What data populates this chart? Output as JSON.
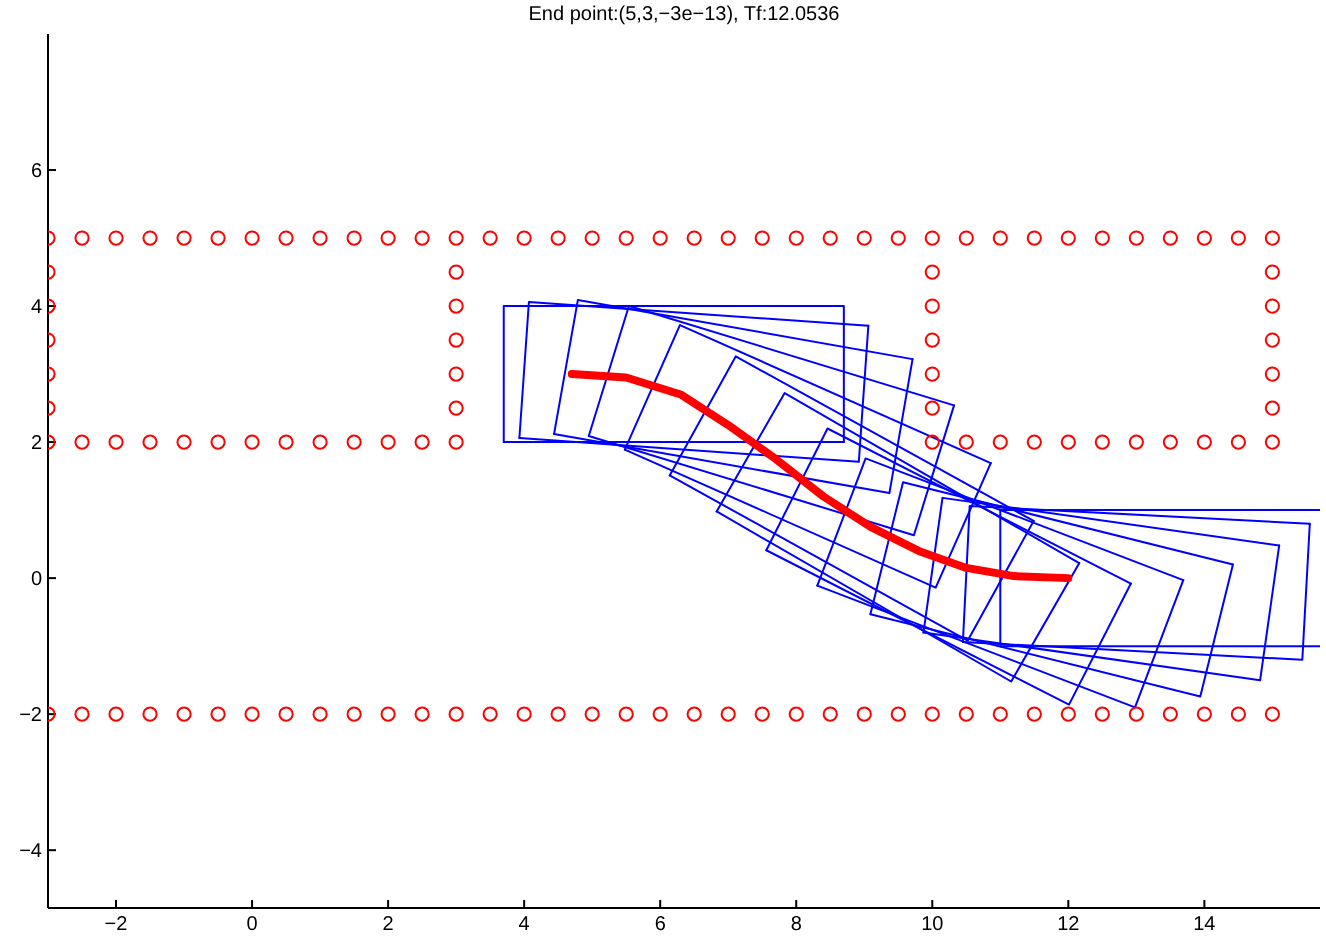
{
  "chart_data": {
    "type": "line",
    "title": "End point:(5,3,−3e−13), Tf:12.0536",
    "xlim": [
      -3,
      15.7
    ],
    "xticks": [
      -2,
      0,
      2,
      4,
      6,
      8,
      10,
      12,
      14
    ],
    "ylim": [
      -4.85,
      8
    ],
    "yticks": [
      -4,
      -2,
      0,
      2,
      4,
      6
    ],
    "grid": false,
    "marker": "none",
    "line_style": "solid",
    "series": [
      {
        "type": "scatter",
        "marker": "circle",
        "color": "#ff0000",
        "x": [
          -3,
          -2.5,
          -2,
          -1.5,
          -1,
          -0.5,
          0,
          0.5,
          1,
          1.5,
          2,
          2.5,
          3,
          3.5,
          4,
          4.5,
          5,
          5.5,
          6,
          6.5,
          7,
          7.5,
          8,
          8.5,
          9,
          9.5,
          10,
          10.5,
          11,
          11.5,
          12,
          12.5,
          13,
          13.5,
          14,
          14.5,
          15
        ],
        "values": [
          5,
          5,
          5,
          5,
          5,
          5,
          5,
          5,
          5,
          5,
          5,
          5,
          5,
          5,
          5,
          5,
          5,
          5,
          5,
          5,
          5,
          5,
          5,
          5,
          5,
          5,
          5,
          5,
          5,
          5,
          5,
          5,
          5,
          5,
          5,
          5,
          5
        ]
      },
      {
        "type": "scatter",
        "marker": "circle",
        "color": "#ff0000",
        "x": [
          -3,
          -2.5,
          -2,
          -1.5,
          -1,
          -0.5,
          0,
          0.5,
          1,
          1.5,
          2,
          2.5,
          3,
          3.5,
          4,
          4.5,
          5,
          5.5,
          6,
          6.5,
          7,
          7.5,
          8,
          8.5,
          9,
          9.5,
          10,
          10.5,
          11,
          11.5,
          12,
          12.5,
          13,
          13.5,
          14,
          14.5,
          15
        ],
        "values": [
          -2,
          -2,
          -2,
          -2,
          -2,
          -2,
          -2,
          -2,
          -2,
          -2,
          -2,
          -2,
          -2,
          -2,
          -2,
          -2,
          -2,
          -2,
          -2,
          -2,
          -2,
          -2,
          -2,
          -2,
          -2,
          -2,
          -2,
          -2,
          -2,
          -2,
          -2,
          -2,
          -2,
          -2,
          -2,
          -2,
          -2
        ]
      },
      {
        "type": "scatter",
        "marker": "circle",
        "color": "#ff0000",
        "x": [
          -3,
          -2.5,
          -2,
          -1.5,
          -1,
          -0.5,
          0,
          0.5,
          1,
          1.5,
          2,
          2.5,
          3,
          10,
          10.5,
          11,
          11.5,
          12,
          12.5,
          13,
          13.5,
          14,
          14.5,
          15
        ],
        "values": [
          2,
          2,
          2,
          2,
          2,
          2,
          2,
          2,
          2,
          2,
          2,
          2,
          2,
          2,
          2,
          2,
          2,
          2,
          2,
          2,
          2,
          2,
          2,
          2
        ]
      },
      {
        "type": "scatter",
        "marker": "circle",
        "color": "#ff0000",
        "x": [
          -3,
          -3,
          -3,
          -3,
          -3,
          3,
          3,
          3,
          3,
          3,
          10,
          10,
          10,
          10,
          10,
          15,
          15,
          15,
          15,
          15
        ],
        "values": [
          2.5,
          3,
          3.5,
          4,
          4.5,
          2.5,
          3,
          3.5,
          4,
          4.5,
          2.5,
          3,
          3.5,
          4,
          4.5,
          2.5,
          3,
          3.5,
          4,
          4.5
        ]
      },
      {
        "color": "#0000ff",
        "x": [
          3.7,
          3.7,
          8.7,
          8.7
        ],
        "values": [
          2,
          4,
          4,
          2
        ]
      },
      {
        "color": "#0000ff",
        "x": [
          3.7,
          8.7
        ],
        "values": [
          2,
          2
        ]
      },
      {
        "color": "#0000ff",
        "x": [
          3.93,
          4.07,
          9.06
        ],
        "values": [
          2.06,
          4.06,
          3.71
        ]
      },
      {
        "color": "#0000ff",
        "x": [
          3.93,
          8.92,
          9.06
        ],
        "values": [
          2.06,
          1.71,
          3.71
        ]
      },
      {
        "color": "#0000ff",
        "x": [
          4.44,
          4.79,
          9.71
        ],
        "values": [
          2.12,
          4.09,
          3.22
        ]
      },
      {
        "color": "#0000ff",
        "x": [
          4.44,
          9.37,
          9.71
        ],
        "values": [
          2.12,
          1.25,
          3.22
        ]
      },
      {
        "color": "#0000ff",
        "x": [
          4.95,
          5.54,
          10.32
        ],
        "values": [
          2.09,
          4,
          2.54
        ]
      },
      {
        "color": "#0000ff",
        "x": [
          4.95,
          9.73,
          10.32
        ],
        "values": [
          2.09,
          0.63,
          2.54
        ]
      },
      {
        "color": "#0000ff",
        "x": [
          5.48,
          6.29,
          10.86
        ],
        "values": [
          1.89,
          3.72,
          1.69
        ]
      },
      {
        "color": "#0000ff",
        "x": [
          5.48,
          10.05,
          10.86
        ],
        "values": [
          1.89,
          -0.14,
          1.69
        ]
      },
      {
        "color": "#0000ff",
        "x": [
          6.14,
          7.11,
          11.49
        ],
        "values": [
          1.51,
          3.26,
          0.84
        ]
      },
      {
        "color": "#0000ff",
        "x": [
          6.14,
          10.52,
          11.49
        ],
        "values": [
          1.51,
          -0.92,
          0.84
        ]
      },
      {
        "color": "#0000ff",
        "x": [
          6.83,
          7.83,
          12.16
        ],
        "values": [
          0.98,
          2.72,
          0.22
        ]
      },
      {
        "color": "#0000ff",
        "x": [
          6.83,
          11.16,
          12.16
        ],
        "values": [
          0.98,
          -1.52,
          0.22
        ]
      },
      {
        "color": "#0000ff",
        "x": [
          7.56,
          8.46,
          12.92
        ],
        "values": [
          0.41,
          2.2,
          -0.08
        ]
      },
      {
        "color": "#0000ff",
        "x": [
          7.56,
          12.01,
          12.92
        ],
        "values": [
          0.41,
          -1.86,
          -0.08
        ]
      },
      {
        "color": "#0000ff",
        "x": [
          8.31,
          9.02,
          13.69
        ],
        "values": [
          -0.11,
          1.76,
          -0.03
        ]
      },
      {
        "color": "#0000ff",
        "x": [
          8.31,
          12.98,
          13.69
        ],
        "values": [
          -0.11,
          -1.9,
          -0.03
        ]
      },
      {
        "color": "#0000ff",
        "x": [
          9.09,
          9.57,
          14.42
        ],
        "values": [
          -0.53,
          1.41,
          0.2
        ]
      },
      {
        "color": "#0000ff",
        "x": [
          9.09,
          13.94,
          14.42
        ],
        "values": [
          -0.53,
          -1.74,
          0.2
        ]
      },
      {
        "color": "#0000ff",
        "x": [
          9.87,
          10.15,
          15.1
        ],
        "values": [
          -0.8,
          1.18,
          0.48
        ]
      },
      {
        "color": "#0000ff",
        "x": [
          9.87,
          14.82,
          15.1
        ],
        "values": [
          -0.8,
          -1.5,
          0.48
        ]
      },
      {
        "color": "#0000ff",
        "x": [
          10.45,
          10.55,
          15.55
        ],
        "values": [
          -0.94,
          1.06,
          0.8
        ]
      },
      {
        "color": "#0000ff",
        "x": [
          10.45,
          15.44,
          15.55
        ],
        "values": [
          -0.94,
          -1.2,
          0.8
        ]
      },
      {
        "color": "#0000ff",
        "x": [
          11,
          11,
          15.7
        ],
        "values": [
          -1,
          1,
          1
        ]
      },
      {
        "color": "#0000ff",
        "x": [
          11,
          15.7
        ],
        "values": [
          -1,
          -1
        ]
      },
      {
        "color": "#ff0000",
        "x": [
          4.7,
          5.5,
          6.3,
          7,
          7.7,
          8.4,
          9.1,
          9.8,
          10.5,
          11.2,
          12
        ],
        "values": [
          3,
          2.95,
          2.7,
          2.25,
          1.75,
          1.2,
          0.75,
          0.4,
          0.15,
          0.03,
          0
        ]
      }
    ]
  }
}
